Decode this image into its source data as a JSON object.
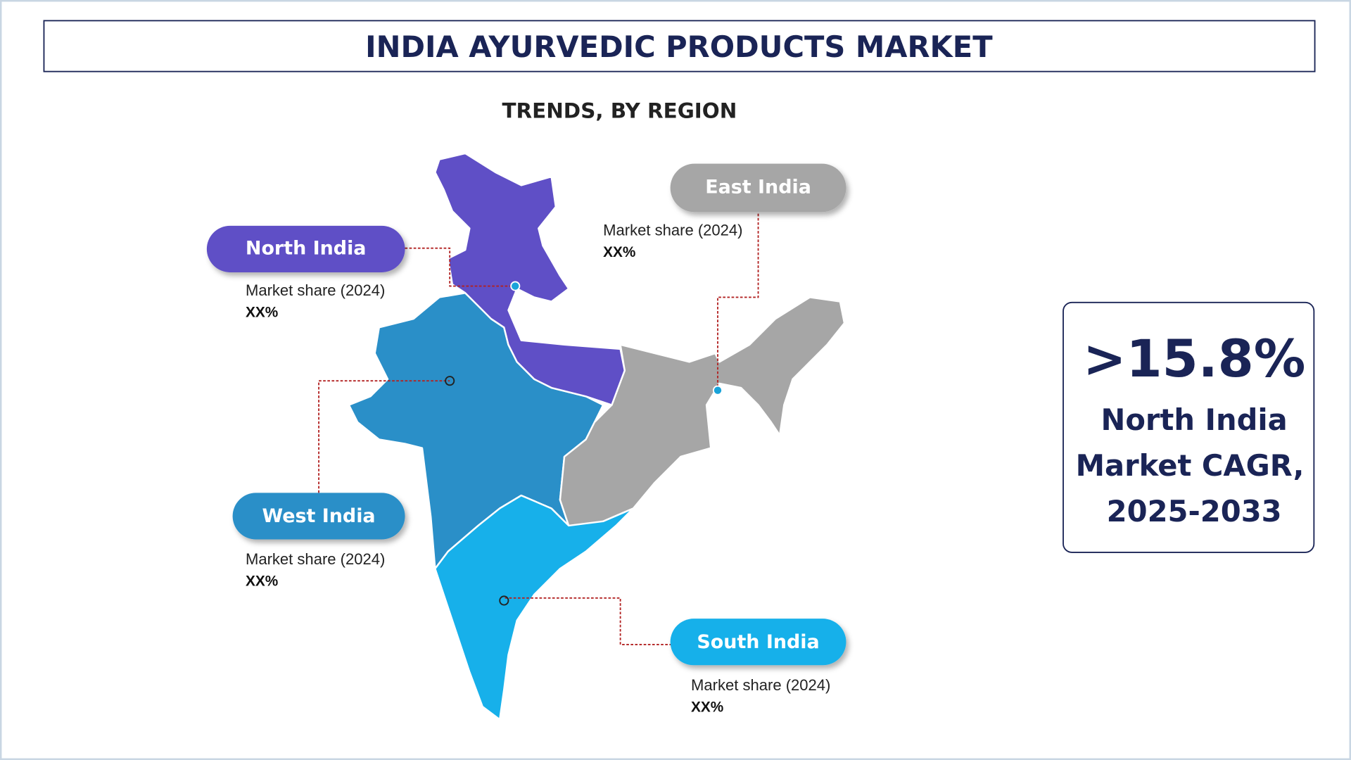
{
  "header": {
    "title": "INDIA AYURVEDIC PRODUCTS MARKET"
  },
  "subtitle": "TRENDS, BY REGION",
  "regions": [
    {
      "name": "North India",
      "label": "Market share (2024)",
      "value": "XX%"
    },
    {
      "name": "East India",
      "label": "Market share (2024)",
      "value": "XX%"
    },
    {
      "name": "West India",
      "label": "Market share (2024)",
      "value": "XX%"
    },
    {
      "name": "South India",
      "label": "Market share (2024)",
      "value": "XX%"
    }
  ],
  "callout": {
    "value": ">15.8%",
    "lines": [
      "North India",
      "Market CAGR,",
      "2025-2033"
    ]
  }
}
